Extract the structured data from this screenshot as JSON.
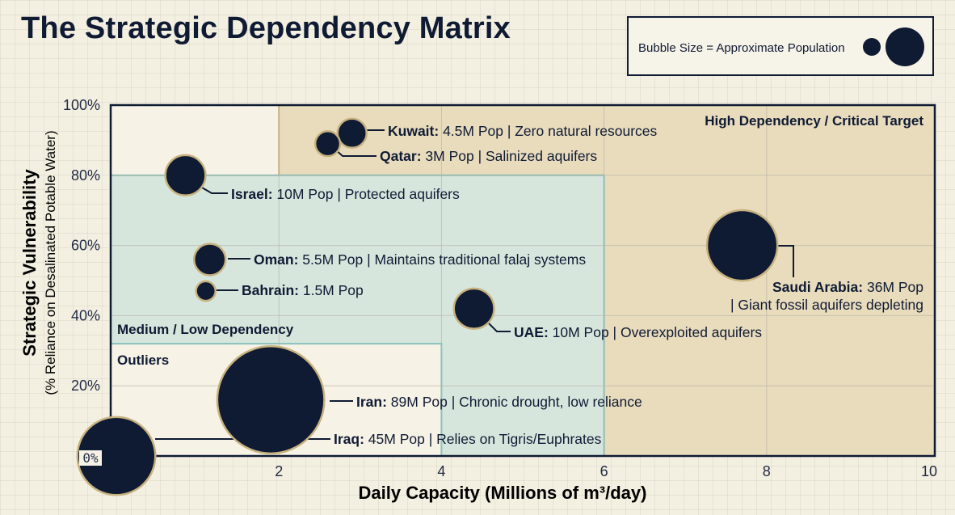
{
  "title": "The Strategic Dependency Matrix",
  "legend": {
    "text": "Bubble Size = Approximate Population"
  },
  "colors": {
    "bubble": "#0f1a33",
    "bubble_ring": "#c7b27f",
    "high_zone": "#e9dcbd",
    "high_zone_border": "#c9b27a",
    "medium_zone": "#d7e6dd",
    "medium_zone_border": "#88c1bd"
  },
  "chart_data": {
    "type": "scatter",
    "title": "The Strategic Dependency Matrix",
    "xlabel": "Daily Capacity (Millions of m³/day)",
    "ylabel": "Strategic Vulnerability",
    "ylabel_sub": "(% Reliance on Desalinated Potable Water)",
    "xlim": [
      0,
      10
    ],
    "ylim": [
      0,
      100
    ],
    "x_ticks": [
      "2",
      "4",
      "6",
      "8",
      "10"
    ],
    "y_ticks": [
      "0%",
      "20%",
      "40%",
      "60%",
      "80%",
      "100%"
    ],
    "grid": true,
    "legend_position": "top-right",
    "regions": [
      {
        "label": "High Dependency / Critical Target",
        "x": [
          2,
          10
        ],
        "y": [
          0,
          100
        ],
        "x2": 6,
        "y2": 80
      },
      {
        "label": "Medium / Low Dependency",
        "x": [
          0,
          6
        ],
        "y": [
          0,
          80
        ]
      },
      {
        "label": "Outliers",
        "x": [
          0,
          4
        ],
        "y": [
          0,
          32
        ]
      }
    ],
    "points": [
      {
        "name": "Kuwait",
        "x": 2.9,
        "y": 92,
        "population_m": 4.5,
        "label_name": "Kuwait:",
        "label_text": " 4.5M Pop | Zero natural resources"
      },
      {
        "name": "Qatar",
        "x": 2.6,
        "y": 89,
        "population_m": 3,
        "label_name": "Qatar:",
        "label_text": " 3M Pop | Salinized aquifers"
      },
      {
        "name": "Israel",
        "x": 0.85,
        "y": 80,
        "population_m": 10,
        "label_name": "Israel:",
        "label_text": " 10M Pop | Protected aquifers"
      },
      {
        "name": "Oman",
        "x": 1.15,
        "y": 56,
        "population_m": 5.5,
        "label_name": "Oman:",
        "label_text": " 5.5M Pop | Maintains traditional falaj systems"
      },
      {
        "name": "Bahrain",
        "x": 1.1,
        "y": 47,
        "population_m": 1.5,
        "label_name": "Bahrain:",
        "label_text": " 1.5M Pop"
      },
      {
        "name": "UAE",
        "x": 4.4,
        "y": 42,
        "population_m": 10,
        "label_name": "UAE:",
        "label_text": " 10M Pop | Overexploited aquifers"
      },
      {
        "name": "Saudi Arabia",
        "x": 7.7,
        "y": 60,
        "population_m": 36,
        "label_name": "Saudi Arabia:",
        "label_text": " 36M Pop",
        "label_text2": "| Giant fossil aquifers depleting"
      },
      {
        "name": "Iran",
        "x": 1.9,
        "y": 16,
        "population_m": 89,
        "label_name": "Iran:",
        "label_text": " 89M Pop | Chronic drought, low reliance"
      },
      {
        "name": "Iraq",
        "x": 0.0,
        "y": 0,
        "population_m": 45,
        "label_name": "Iraq:",
        "label_text": " 45M Pop | Relies on Tigris/Euphrates"
      }
    ]
  }
}
